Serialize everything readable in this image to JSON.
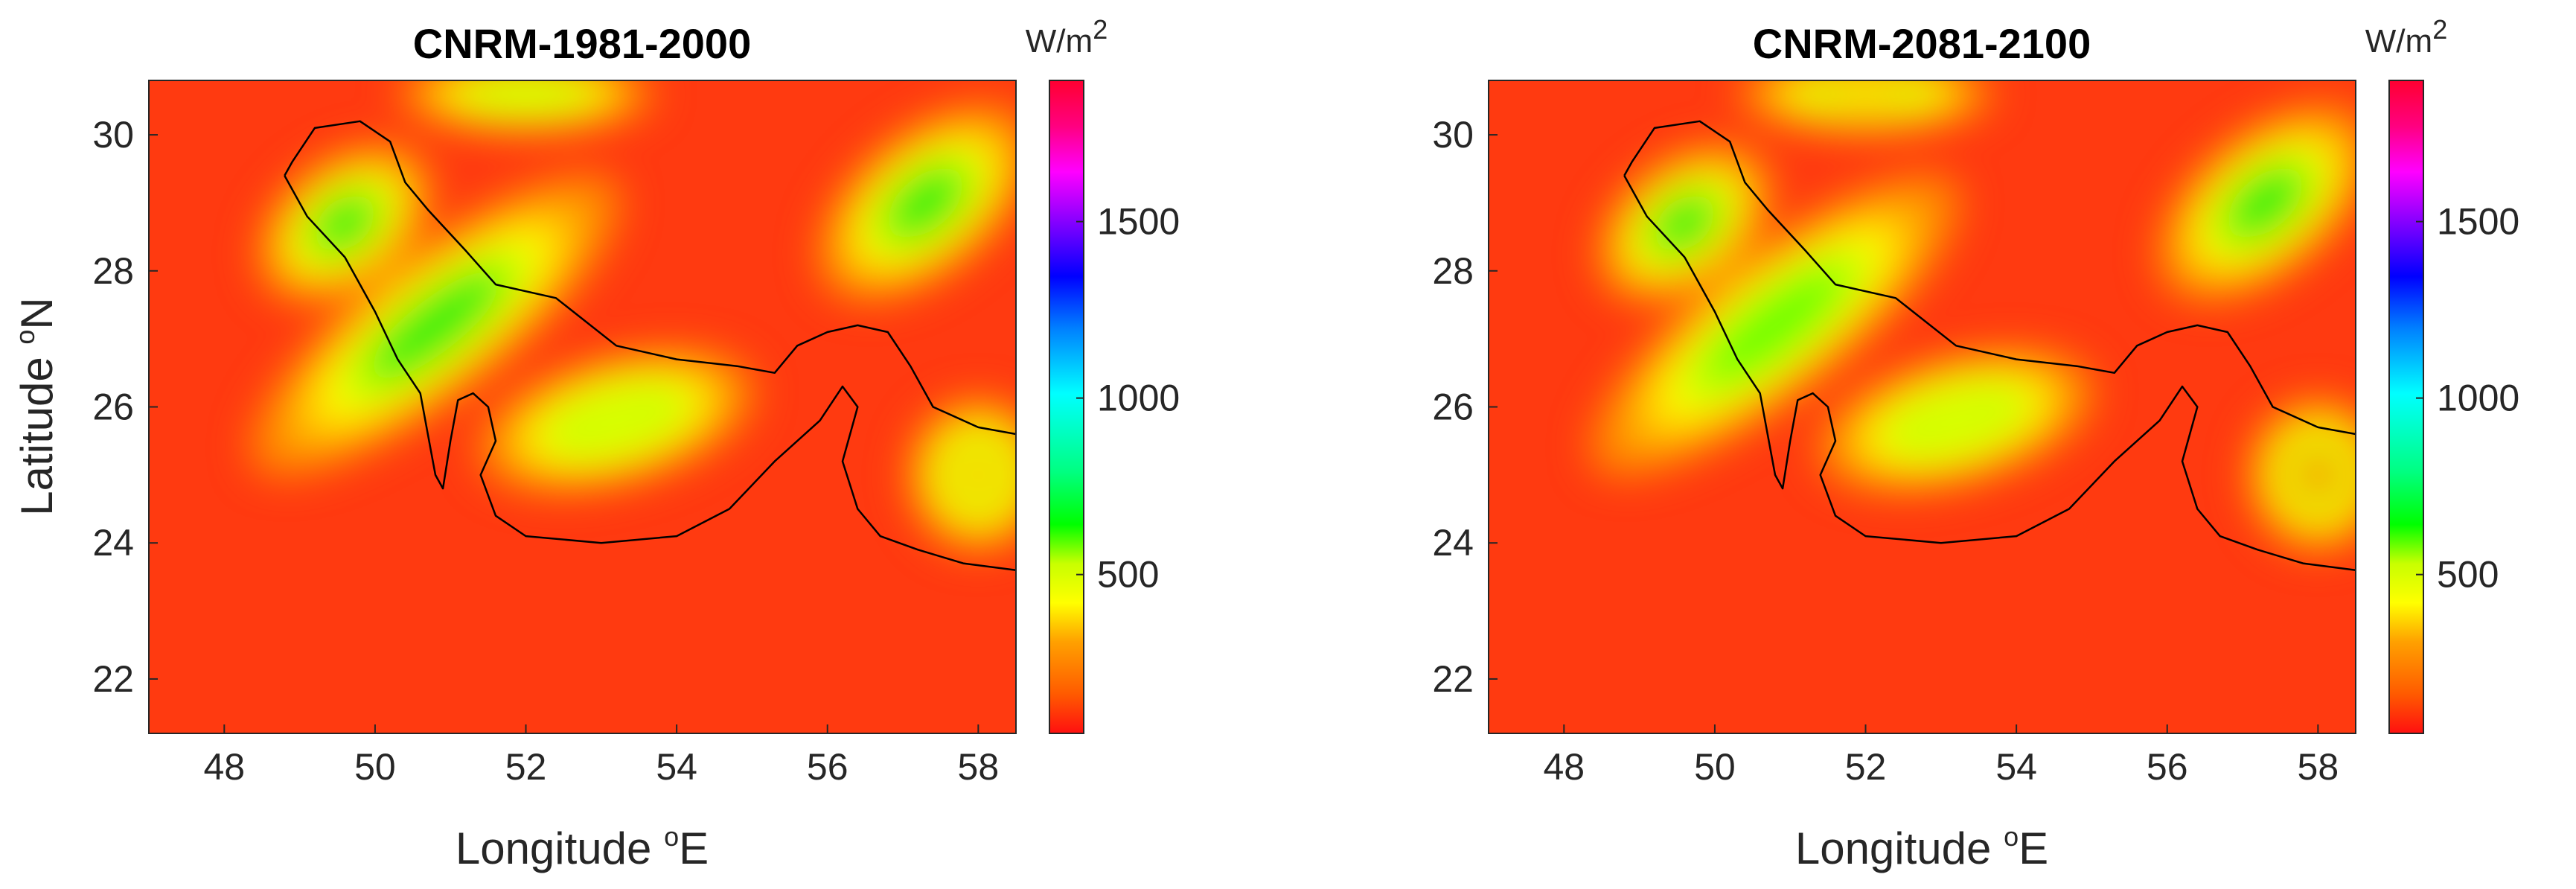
{
  "chart_data": [
    {
      "type": "heatmap",
      "title": "CNRM-1981-2000",
      "xlabel": "Longitude",
      "xlabel_unit": "E",
      "ylabel": "Latitude",
      "ylabel_unit": "N",
      "degree_sup": "o",
      "xlim": [
        47.0,
        58.5
      ],
      "ylim": [
        21.2,
        30.8
      ],
      "xticks": [
        48,
        50,
        52,
        54,
        56,
        58
      ],
      "yticks": [
        22,
        24,
        26,
        28,
        30
      ],
      "colorbar": {
        "unit": "W/m",
        "unit_sup": "2",
        "range": [
          50,
          1900
        ],
        "ticks": [
          500,
          1000,
          1500
        ]
      },
      "hotspots": [
        {
          "lon": 50.8,
          "lat": 27.2,
          "value": 520,
          "sx": 1.6,
          "sy": 0.55,
          "angle": -38
        },
        {
          "lon": 49.6,
          "lat": 28.7,
          "value": 560,
          "sx": 0.7,
          "sy": 0.5,
          "angle": -38
        },
        {
          "lon": 53.2,
          "lat": 25.8,
          "value": 460,
          "sx": 1.0,
          "sy": 0.5,
          "angle": -15
        },
        {
          "lon": 57.3,
          "lat": 29.0,
          "value": 560,
          "sx": 0.9,
          "sy": 0.55,
          "angle": -40
        },
        {
          "lon": 52.0,
          "lat": 30.6,
          "value": 420,
          "sx": 0.9,
          "sy": 0.3,
          "angle": 0
        },
        {
          "lon": 58.0,
          "lat": 25.0,
          "value": 380,
          "sx": 0.5,
          "sy": 0.6,
          "angle": 0
        }
      ]
    },
    {
      "type": "heatmap",
      "title": "CNRM-2081-2100",
      "xlabel": "Longitude",
      "xlabel_unit": "E",
      "ylabel": "",
      "ylabel_unit": "",
      "degree_sup": "o",
      "xlim": [
        47.0,
        58.5
      ],
      "ylim": [
        21.2,
        30.8
      ],
      "xticks": [
        48,
        50,
        52,
        54,
        56,
        58
      ],
      "yticks": [
        22,
        24,
        26,
        28,
        30
      ],
      "colorbar": {
        "unit": "W/m",
        "unit_sup": "2",
        "range": [
          50,
          1900
        ],
        "ticks": [
          500,
          1000,
          1500
        ]
      },
      "hotspots": [
        {
          "lon": 50.8,
          "lat": 27.2,
          "value": 480,
          "sx": 1.6,
          "sy": 0.55,
          "angle": -38
        },
        {
          "lon": 49.6,
          "lat": 28.7,
          "value": 520,
          "sx": 0.7,
          "sy": 0.5,
          "angle": -38
        },
        {
          "lon": 53.2,
          "lat": 25.8,
          "value": 430,
          "sx": 1.0,
          "sy": 0.5,
          "angle": -15
        },
        {
          "lon": 57.3,
          "lat": 29.0,
          "value": 540,
          "sx": 0.9,
          "sy": 0.55,
          "angle": -40
        },
        {
          "lon": 52.0,
          "lat": 30.6,
          "value": 400,
          "sx": 0.9,
          "sy": 0.3,
          "angle": 0
        },
        {
          "lon": 58.0,
          "lat": 25.0,
          "value": 360,
          "sx": 0.5,
          "sy": 0.6,
          "angle": 0
        }
      ]
    }
  ],
  "coastline": [
    [
      48.8,
      29.4
    ],
    [
      48.9,
      29.6
    ],
    [
      49.2,
      30.1
    ],
    [
      49.8,
      30.2
    ],
    [
      50.2,
      29.9
    ],
    [
      50.4,
      29.3
    ],
    [
      50.7,
      28.9
    ],
    [
      51.2,
      28.3
    ],
    [
      51.6,
      27.8
    ],
    [
      52.4,
      27.6
    ],
    [
      53.2,
      26.9
    ],
    [
      54.0,
      26.7
    ],
    [
      54.8,
      26.6
    ],
    [
      55.3,
      26.5
    ],
    [
      55.6,
      26.9
    ],
    [
      56.0,
      27.1
    ],
    [
      56.4,
      27.2
    ],
    [
      56.8,
      27.1
    ],
    [
      57.1,
      26.6
    ],
    [
      57.4,
      26.0
    ],
    [
      58.0,
      25.7
    ],
    [
      58.5,
      25.6
    ]
  ],
  "coastline_south": [
    [
      48.8,
      29.4
    ],
    [
      49.1,
      28.8
    ],
    [
      49.6,
      28.2
    ],
    [
      50.0,
      27.4
    ],
    [
      50.3,
      26.7
    ],
    [
      50.6,
      26.2
    ],
    [
      50.7,
      25.6
    ],
    [
      50.8,
      25.0
    ],
    [
      50.9,
      24.8
    ],
    [
      51.0,
      25.5
    ],
    [
      51.1,
      26.1
    ],
    [
      51.3,
      26.2
    ],
    [
      51.5,
      26.0
    ],
    [
      51.6,
      25.5
    ],
    [
      51.4,
      25.0
    ],
    [
      51.6,
      24.4
    ],
    [
      52.0,
      24.1
    ],
    [
      53.0,
      24.0
    ],
    [
      54.0,
      24.1
    ],
    [
      54.7,
      24.5
    ],
    [
      55.3,
      25.2
    ],
    [
      55.9,
      25.8
    ],
    [
      56.2,
      26.3
    ],
    [
      56.4,
      26.0
    ],
    [
      56.2,
      25.2
    ],
    [
      56.4,
      24.5
    ],
    [
      56.7,
      24.1
    ],
    [
      57.2,
      23.9
    ],
    [
      57.8,
      23.7
    ],
    [
      58.5,
      23.6
    ]
  ]
}
